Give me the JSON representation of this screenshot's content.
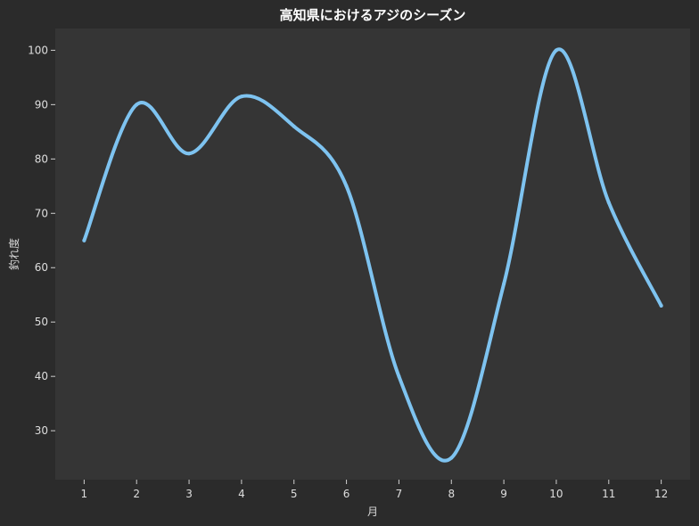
{
  "chart_data": {
    "type": "line",
    "title": "高知県におけるアジのシーズン",
    "xlabel": "月",
    "ylabel": "釣れ度",
    "x": [
      1,
      2,
      3,
      4,
      5,
      6,
      7,
      8,
      9,
      10,
      11,
      12
    ],
    "series": [
      {
        "values": [
          65,
          90,
          81,
          91.5,
          86,
          75,
          40,
          25,
          57,
          100,
          72,
          53
        ],
        "color": "#7ec3f0"
      }
    ],
    "xticks": [
      "1",
      "2",
      "3",
      "4",
      "5",
      "6",
      "7",
      "8",
      "9",
      "10",
      "11",
      "12"
    ],
    "yticks": [
      "30",
      "40",
      "50",
      "60",
      "70",
      "80",
      "90",
      "100"
    ],
    "xlim": [
      0.45,
      12.55
    ],
    "ylim": [
      21,
      104
    ],
    "grid": false,
    "colors": {
      "background": "#2b2b2b",
      "plot_background": "#353535",
      "line": "#7ec3f0"
    }
  }
}
